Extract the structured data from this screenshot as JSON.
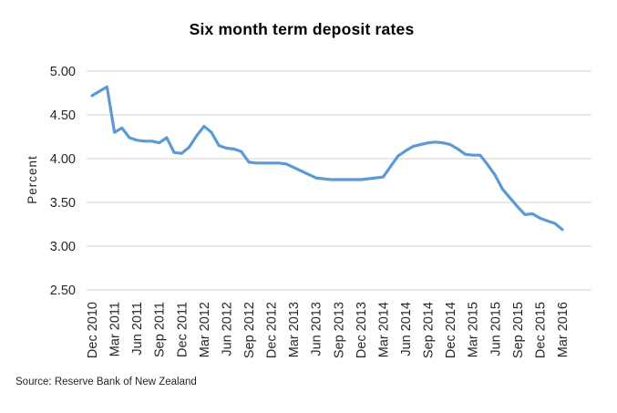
{
  "title": "Six month term deposit rates",
  "source": "Source: Reserve Bank of New Zealand",
  "chart_data": {
    "type": "line",
    "title": "Six month term deposit rates",
    "xlabel": "",
    "ylabel": "Percent",
    "ylim": [
      2.5,
      5.0
    ],
    "y_ticks": [
      "5.00",
      "4.50",
      "4.00",
      "3.50",
      "3.00",
      "2.50"
    ],
    "x_tick_labels": [
      "Dec 2010",
      "Mar 2011",
      "Jun 2011",
      "Sep 2011",
      "Dec 2011",
      "Mar 2012",
      "Jun 2012",
      "Sep 2012",
      "Dec 2012",
      "Mar 2013",
      "Jun 2013",
      "Sep 2013",
      "Dec 2013",
      "Mar 2014",
      "Jun 2014",
      "Sep 2014",
      "Dec 2014",
      "Mar 2015",
      "Jun 2015",
      "Sep 2015",
      "Dec 2015",
      "Mar 2016"
    ],
    "x": [
      "Dec 2010",
      "Jan 2011",
      "Feb 2011",
      "Mar 2011",
      "Apr 2011",
      "May 2011",
      "Jun 2011",
      "Jul 2011",
      "Aug 2011",
      "Sep 2011",
      "Oct 2011",
      "Nov 2011",
      "Dec 2011",
      "Jan 2012",
      "Feb 2012",
      "Mar 2012",
      "Apr 2012",
      "May 2012",
      "Jun 2012",
      "Jul 2012",
      "Aug 2012",
      "Sep 2012",
      "Oct 2012",
      "Nov 2012",
      "Dec 2012",
      "Jan 2013",
      "Feb 2013",
      "Mar 2013",
      "Apr 2013",
      "May 2013",
      "Jun 2013",
      "Jul 2013",
      "Aug 2013",
      "Sep 2013",
      "Oct 2013",
      "Nov 2013",
      "Dec 2013",
      "Jan 2014",
      "Feb 2014",
      "Mar 2014",
      "Apr 2014",
      "May 2014",
      "Jun 2014",
      "Jul 2014",
      "Aug 2014",
      "Sep 2014",
      "Oct 2014",
      "Nov 2014",
      "Dec 2014",
      "Jan 2015",
      "Feb 2015",
      "Mar 2015",
      "Apr 2015",
      "May 2015",
      "Jun 2015",
      "Jul 2015",
      "Aug 2015",
      "Sep 2015",
      "Oct 2015",
      "Nov 2015",
      "Dec 2015",
      "Jan 2016",
      "Feb 2016",
      "Mar 2016"
    ],
    "series": [
      {
        "name": "Six month term deposit rate",
        "values": [
          4.72,
          4.77,
          4.82,
          4.3,
          4.35,
          4.24,
          4.21,
          4.2,
          4.2,
          4.18,
          4.24,
          4.07,
          4.06,
          4.13,
          4.26,
          4.37,
          4.3,
          4.15,
          4.12,
          4.11,
          4.08,
          3.96,
          3.95,
          3.95,
          3.95,
          3.95,
          3.94,
          3.9,
          3.86,
          3.82,
          3.78,
          3.77,
          3.76,
          3.76,
          3.76,
          3.76,
          3.76,
          3.77,
          3.78,
          3.79,
          3.91,
          4.03,
          4.09,
          4.14,
          4.16,
          4.18,
          4.19,
          4.18,
          4.16,
          4.11,
          4.05,
          4.04,
          4.04,
          3.93,
          3.81,
          3.65,
          3.55,
          3.45,
          3.36,
          3.37,
          3.32,
          3.29,
          3.26,
          3.19
        ]
      }
    ],
    "grid": "horizontal",
    "legend": "none",
    "line_color": "#5B9BD5",
    "gridline_color": "#D9D9D9",
    "text_color": "#262626"
  }
}
